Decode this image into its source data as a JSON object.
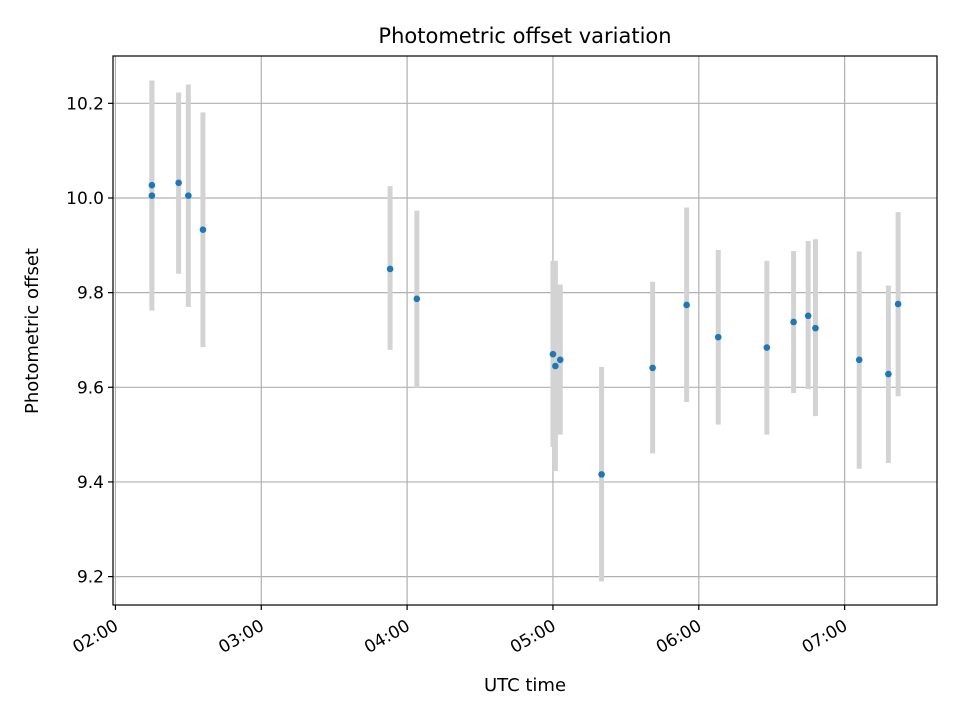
{
  "chart_data": {
    "type": "scatter",
    "title": "Photometric offset variation",
    "xlabel": "UTC time",
    "ylabel": "Photometric offset",
    "x_unit": "UTC time (HH:MM)",
    "xlim": [
      "01:59",
      "07:38"
    ],
    "ylim": [
      9.14,
      10.3
    ],
    "x_ticks": [
      "02:00",
      "03:00",
      "04:00",
      "05:00",
      "06:00",
      "07:00"
    ],
    "y_ticks": [
      9.2,
      9.4,
      9.6,
      9.8,
      10.0,
      10.2
    ],
    "y_tick_labels": [
      "9.2",
      "9.4",
      "9.6",
      "9.8",
      "10.0",
      "10.2"
    ],
    "grid": true,
    "legend": "none",
    "marker_color": "#1f77b4",
    "errorbar_color": "#d3d3d3",
    "points": [
      {
        "x": "02:15",
        "y": 10.027,
        "ylow": 9.808,
        "yhigh": 10.248
      },
      {
        "x": "02:15",
        "y": 10.005,
        "ylow": 9.762,
        "yhigh": 10.248
      },
      {
        "x": "02:26",
        "y": 10.032,
        "ylow": 9.84,
        "yhigh": 10.223
      },
      {
        "x": "02:30",
        "y": 10.005,
        "ylow": 9.77,
        "yhigh": 10.24
      },
      {
        "x": "02:36",
        "y": 9.933,
        "ylow": 9.685,
        "yhigh": 10.181
      },
      {
        "x": "03:53",
        "y": 9.85,
        "ylow": 9.679,
        "yhigh": 10.025
      },
      {
        "x": "04:04",
        "y": 9.787,
        "ylow": 9.599,
        "yhigh": 9.973
      },
      {
        "x": "05:00",
        "y": 9.67,
        "ylow": 9.474,
        "yhigh": 9.867
      },
      {
        "x": "05:01",
        "y": 9.645,
        "ylow": 9.423,
        "yhigh": 9.867
      },
      {
        "x": "05:03",
        "y": 9.658,
        "ylow": 9.5,
        "yhigh": 9.817
      },
      {
        "x": "05:20",
        "y": 9.416,
        "ylow": 9.19,
        "yhigh": 9.643
      },
      {
        "x": "05:41",
        "y": 9.641,
        "ylow": 9.46,
        "yhigh": 9.823
      },
      {
        "x": "05:55",
        "y": 9.774,
        "ylow": 9.569,
        "yhigh": 9.98
      },
      {
        "x": "06:08",
        "y": 9.706,
        "ylow": 9.521,
        "yhigh": 9.89
      },
      {
        "x": "06:28",
        "y": 9.684,
        "ylow": 9.5,
        "yhigh": 9.867
      },
      {
        "x": "06:39",
        "y": 9.738,
        "ylow": 9.588,
        "yhigh": 9.888
      },
      {
        "x": "06:45",
        "y": 9.751,
        "ylow": 9.596,
        "yhigh": 9.909
      },
      {
        "x": "06:48",
        "y": 9.725,
        "ylow": 9.539,
        "yhigh": 9.913
      },
      {
        "x": "07:06",
        "y": 9.658,
        "ylow": 9.428,
        "yhigh": 9.887
      },
      {
        "x": "07:18",
        "y": 9.628,
        "ylow": 9.44,
        "yhigh": 9.815
      },
      {
        "x": "07:22",
        "y": 9.776,
        "ylow": 9.581,
        "yhigh": 9.97
      }
    ]
  }
}
